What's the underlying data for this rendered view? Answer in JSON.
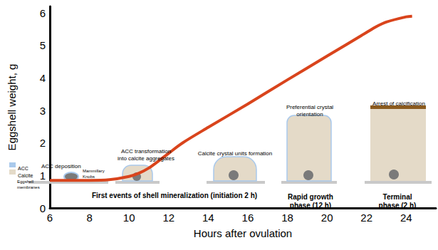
{
  "chart_data": {
    "type": "line",
    "x_label": "Hours after ovulation",
    "y_label": "Eggshell weight, g",
    "x": [
      6,
      8,
      9,
      10,
      10.5,
      11,
      11.5,
      12,
      12.7,
      14,
      16,
      18,
      20,
      22,
      22.5,
      23,
      24,
      24.3
    ],
    "values": [
      0.85,
      0.85,
      0.87,
      0.97,
      1.07,
      1.23,
      1.45,
      1.68,
      2.0,
      2.48,
      3.2,
      3.94,
      4.67,
      5.4,
      5.58,
      5.72,
      5.88,
      5.9
    ],
    "color": "#d9441c",
    "xlim": [
      6,
      25.5
    ],
    "xticks": [
      6,
      8,
      10,
      12,
      14,
      16,
      18,
      20,
      22,
      24
    ],
    "ylim": [
      0,
      6.2
    ],
    "yticks": [
      0,
      1,
      2,
      3,
      4,
      5,
      6
    ],
    "grid": false,
    "annotations": [
      "ACC",
      "Calcite",
      "ACC deposition",
      "Eggshell\nmembranes",
      "Mammillary\nKnobs",
      "ACC transformation\ninto calcite aggregates",
      "Calcite crystal units formation",
      "Preferential crystal\norientation",
      "Arrest of calcification",
      "First events of shell mineralization (initiation 2 h)",
      "Rapid growth\nphase (12 h)",
      "Terminal\nphase (2 h)"
    ]
  }
}
